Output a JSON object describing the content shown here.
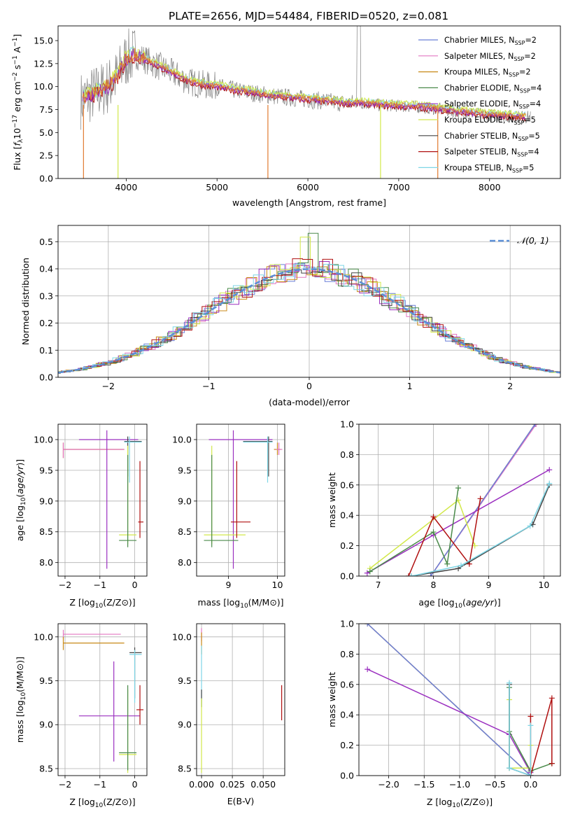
{
  "figure_title": "PLATE=2656, MJD=54484, FIBERID=0520, z=0.081",
  "colors": {
    "Chabrier MILES": "#6a7fd8",
    "Salpeter MILES": "#e377c2",
    "Kroupa MILES": "#c88a18",
    "Chabrier ELODIE": "#4a8a4a",
    "Salpeter ELODIE": "#9b30c0",
    "Kroupa ELODIE": "#d2e84a",
    "Chabrier STELIB": "#454545",
    "Salpeter STELIB": "#b01010",
    "Kroupa STELIB": "#7ed6e6",
    "orange_overlay": "#e07a30",
    "data_gray": "#808080",
    "normal_dash": "#5b8fd6"
  },
  "chart_data": [
    {
      "id": "spectrum",
      "type": "line",
      "title": "PLATE=2656, MJD=54484, FIBERID=0520, z=0.081",
      "xlabel": "wavelength [Angstrom, rest frame]",
      "ylabel_main": "Flux [",
      "xlim": [
        3250,
        8780
      ],
      "ylim": [
        0,
        16.6
      ],
      "xticks": [
        4000,
        5000,
        6000,
        7000,
        8000
      ],
      "yticks": [
        "0.0",
        "2.5",
        "5.0",
        "7.5",
        "10.0",
        "12.5",
        "15.0"
      ],
      "ytick_values": [
        0,
        2.5,
        5,
        7.5,
        10,
        12.5,
        15
      ],
      "grid": false,
      "legend_position": "top-right",
      "continuum": {
        "x": [
          3500,
          3600,
          3700,
          3800,
          3900,
          4000,
          4100,
          4200,
          4300,
          4400,
          4500,
          4600,
          4700,
          4800,
          4900,
          5000,
          5200,
          5400,
          5600,
          5800,
          6000,
          6200,
          6400,
          6600,
          6800,
          7000,
          7200,
          7400,
          7600,
          7800,
          8000,
          8200,
          8400
        ],
        "y": [
          8.5,
          9.0,
          9.5,
          10.0,
          11.0,
          13.0,
          13.5,
          13.0,
          12.5,
          12.0,
          11.5,
          11.0,
          10.5,
          10.3,
          10.1,
          10.0,
          9.6,
          9.3,
          9.0,
          8.8,
          8.6,
          8.4,
          8.2,
          8.2,
          8.0,
          7.9,
          7.8,
          7.6,
          7.3,
          7.1,
          6.9,
          6.8,
          6.7
        ]
      },
      "legend": [
        {
          "label": "Chabrier MILES",
          "n": "2"
        },
        {
          "label": "Salpeter MILES",
          "n": "2"
        },
        {
          "label": "Kroupa MILES",
          "n": "2"
        },
        {
          "label": "Chabrier ELODIE",
          "n": "4"
        },
        {
          "label": "Salpeter ELODIE",
          "n": "4"
        },
        {
          "label": "Kroupa ELODIE",
          "n": "5"
        },
        {
          "label": "Chabrier STELIB",
          "n": "5"
        },
        {
          "label": "Salpeter STELIB",
          "n": "4"
        },
        {
          "label": "Kroupa STELIB",
          "n": "5"
        }
      ]
    },
    {
      "id": "residuals",
      "type": "line",
      "xlabel": "(data-model)/error",
      "ylabel": "Normed distribution",
      "xlim": [
        -2.5,
        2.5
      ],
      "ylim": [
        0,
        0.56
      ],
      "xticks": [
        "−2",
        "−1",
        "0",
        "1",
        "2"
      ],
      "xtick_values": [
        -2,
        -1,
        0,
        1,
        2
      ],
      "yticks": [
        "0.0",
        "0.1",
        "0.2",
        "0.3",
        "0.4",
        "0.5"
      ],
      "ytick_values": [
        0,
        0.1,
        0.2,
        0.3,
        0.4,
        0.5
      ],
      "grid": true,
      "legend_position": "top-right",
      "legend_label": "𝒩(0, 1)"
    },
    {
      "id": "age_vs_Z",
      "type": "scatter",
      "xlabel": "Z [log",
      "ylabel": "age  [log",
      "xlim": [
        -2.2,
        0.35
      ],
      "ylim": [
        7.78,
        10.25
      ],
      "xticks": [
        "−2",
        "−1",
        "0"
      ],
      "xtick_values": [
        -2,
        -1,
        0
      ],
      "yticks": [
        "8.0",
        "8.5",
        "9.0",
        "9.5",
        "10.0"
      ],
      "ytick_values": [
        8.0,
        8.5,
        9.0,
        9.5,
        10.0
      ],
      "grid": true,
      "points": [
        {
          "model": "Kroupa MILES",
          "x": -2.05,
          "y": 9.84,
          "xlo": -2.05,
          "xhi": -0.3,
          "ylo": 9.7,
          "yhi": 9.95
        },
        {
          "model": "Salpeter MILES",
          "x": -2.05,
          "y": 9.84,
          "xlo": -2.05,
          "xhi": -0.3,
          "ylo": 9.7,
          "yhi": 9.95
        },
        {
          "model": "Salpeter ELODIE",
          "x": -0.8,
          "y": 10.0,
          "xlo": -1.6,
          "xhi": 0.1,
          "ylo": 7.9,
          "yhi": 10.15
        },
        {
          "model": "Chabrier STELIB",
          "x": -0.2,
          "y": 9.97,
          "xlo": -0.3,
          "xhi": 0.2,
          "ylo": 9.4,
          "yhi": 10.05
        },
        {
          "model": "Kroupa STELIB",
          "x": -0.15,
          "y": 9.96,
          "xlo": -0.3,
          "xhi": 0.2,
          "ylo": 9.3,
          "yhi": 10.05
        },
        {
          "model": "Kroupa ELODIE",
          "x": -0.2,
          "y": 8.45,
          "xlo": -0.45,
          "xhi": 0.05,
          "ylo": 8.3,
          "yhi": 9.9
        },
        {
          "model": "Chabrier ELODIE",
          "x": -0.2,
          "y": 8.36,
          "xlo": -0.45,
          "xhi": 0.05,
          "ylo": 8.25,
          "yhi": 9.75
        },
        {
          "model": "Salpeter STELIB",
          "x": 0.15,
          "y": 8.66,
          "xlo": 0.1,
          "xhi": 0.25,
          "ylo": 8.4,
          "yhi": 9.65
        }
      ]
    },
    {
      "id": "age_vs_mass",
      "type": "scatter",
      "xlabel": "mass [log",
      "xlim": [
        8.35,
        10.15
      ],
      "ylim": [
        7.78,
        10.25
      ],
      "xticks": [
        "9",
        "10"
      ],
      "xtick_values": [
        9,
        10
      ],
      "yticks": [
        "8.0",
        "8.5",
        "9.0",
        "9.5",
        "10.0"
      ],
      "ytick_values": [
        8.0,
        8.5,
        9.0,
        9.5,
        10.0
      ],
      "grid": true,
      "points": [
        {
          "model": "Salpeter ELODIE",
          "x": 9.1,
          "y": 10.0,
          "xlo": 8.6,
          "xhi": 9.9,
          "ylo": 7.9,
          "yhi": 10.15
        },
        {
          "model": "Kroupa MILES",
          "x": 10.0,
          "y": 9.84,
          "xlo": 9.93,
          "xhi": 10.07,
          "ylo": 9.75,
          "yhi": 9.95
        },
        {
          "model": "Salpeter MILES",
          "x": 10.03,
          "y": 9.84,
          "xlo": 9.97,
          "xhi": 10.1,
          "ylo": 9.75,
          "yhi": 9.95
        },
        {
          "model": "Chabrier STELIB",
          "x": 9.82,
          "y": 9.97,
          "xlo": 9.3,
          "xhi": 9.9,
          "ylo": 9.4,
          "yhi": 10.05
        },
        {
          "model": "Kroupa STELIB",
          "x": 9.8,
          "y": 9.96,
          "xlo": 9.3,
          "xhi": 9.9,
          "ylo": 9.3,
          "yhi": 10.05
        },
        {
          "model": "Kroupa ELODIE",
          "x": 8.66,
          "y": 8.45,
          "xlo": 8.5,
          "xhi": 9.35,
          "ylo": 8.3,
          "yhi": 9.9
        },
        {
          "model": "Chabrier ELODIE",
          "x": 8.66,
          "y": 8.36,
          "xlo": 8.5,
          "xhi": 9.2,
          "ylo": 8.25,
          "yhi": 9.75
        },
        {
          "model": "Salpeter STELIB",
          "x": 9.17,
          "y": 8.66,
          "xlo": 9.05,
          "xhi": 9.45,
          "ylo": 8.4,
          "yhi": 9.65
        }
      ]
    },
    {
      "id": "weight_vs_age",
      "type": "line",
      "xlabel": "age  [log",
      "ylabel": "mass weight",
      "xlim": [
        6.65,
        10.3
      ],
      "ylim": [
        0,
        1.0
      ],
      "xticks": [
        "7",
        "8",
        "9",
        "10"
      ],
      "xtick_values": [
        7,
        8,
        9,
        10
      ],
      "yticks": [
        "0.0",
        "0.2",
        "0.4",
        "0.6",
        "0.8",
        "1.0"
      ],
      "ytick_values": [
        0,
        0.2,
        0.4,
        0.6,
        0.8,
        1.0
      ],
      "grid": true,
      "series": [
        {
          "model": "Kroupa MILES",
          "x": [
            7.95,
            9.84
          ],
          "y": [
            0.0,
            1.0
          ]
        },
        {
          "model": "Salpeter MILES",
          "x": [
            7.95,
            9.86
          ],
          "y": [
            0.0,
            1.0
          ]
        },
        {
          "model": "Chabrier MILES",
          "x": [
            7.95,
            9.84
          ],
          "y": [
            0.0,
            1.0
          ]
        },
        {
          "model": "Salpeter ELODIE",
          "x": [
            6.8,
            8.0,
            10.1
          ],
          "y": [
            0.02,
            0.27,
            0.7
          ]
        },
        {
          "model": "Kroupa ELODIE",
          "x": [
            6.85,
            8.45,
            8.75
          ],
          "y": [
            0.05,
            0.5,
            0.2
          ]
        },
        {
          "model": "Chabrier ELODIE",
          "x": [
            6.85,
            8.0,
            8.25,
            8.45
          ],
          "y": [
            0.03,
            0.29,
            0.08,
            0.58
          ]
        },
        {
          "model": "Salpeter STELIB",
          "x": [
            7.55,
            8.0,
            8.65,
            8.85
          ],
          "y": [
            0.0,
            0.39,
            0.08,
            0.51
          ]
        },
        {
          "model": "Chabrier STELIB",
          "x": [
            7.6,
            8.45,
            9.8,
            10.1
          ],
          "y": [
            0.0,
            0.05,
            0.34,
            0.6
          ]
        },
        {
          "model": "Kroupa STELIB",
          "x": [
            7.6,
            8.5,
            9.75,
            10.1
          ],
          "y": [
            0.0,
            0.07,
            0.33,
            0.61
          ]
        }
      ]
    },
    {
      "id": "mass_vs_Z",
      "type": "scatter",
      "xlabel": "Z [log",
      "ylabel": "mass [log",
      "xlim": [
        -2.2,
        0.35
      ],
      "ylim": [
        8.42,
        10.15
      ],
      "xticks": [
        "−2",
        "−1",
        "0"
      ],
      "xtick_values": [
        -2,
        -1,
        0
      ],
      "yticks": [
        "8.5",
        "9.0",
        "9.5",
        "10.0"
      ],
      "ytick_values": [
        8.5,
        9.0,
        9.5,
        10.0
      ],
      "grid": true,
      "points": [
        {
          "model": "Salpeter MILES",
          "x": -2.05,
          "y": 10.03,
          "xlo": -2.05,
          "xhi": -0.4,
          "ylo": 9.98,
          "yhi": 10.08
        },
        {
          "model": "Kroupa MILES",
          "x": -2.05,
          "y": 9.93,
          "xlo": -2.05,
          "xhi": -0.3,
          "ylo": 9.85,
          "yhi": 10.0
        },
        {
          "model": "Salpeter ELODIE",
          "x": -0.6,
          "y": 9.1,
          "xlo": -1.6,
          "xhi": 0.15,
          "ylo": 8.58,
          "yhi": 9.72
        },
        {
          "model": "Chabrier STELIB",
          "x": 0.0,
          "y": 9.82,
          "xlo": -0.15,
          "xhi": 0.2,
          "ylo": 9.3,
          "yhi": 9.88
        },
        {
          "model": "Kroupa STELIB",
          "x": 0.0,
          "y": 9.8,
          "xlo": -0.15,
          "xhi": 0.2,
          "ylo": 9.25,
          "yhi": 9.85
        },
        {
          "model": "Kroupa ELODIE",
          "x": -0.2,
          "y": 8.66,
          "xlo": -0.45,
          "xhi": 0.05,
          "ylo": 8.45,
          "yhi": 9.4
        },
        {
          "model": "Chabrier ELODIE",
          "x": -0.2,
          "y": 8.68,
          "xlo": -0.45,
          "xhi": 0.05,
          "ylo": 8.48,
          "yhi": 9.45
        },
        {
          "model": "Salpeter STELIB",
          "x": 0.15,
          "y": 9.17,
          "xlo": 0.05,
          "xhi": 0.25,
          "ylo": 9.0,
          "yhi": 9.45
        }
      ]
    },
    {
      "id": "mass_vs_ebv",
      "type": "scatter",
      "xlabel": "E(B-V)",
      "xlim": [
        -0.004,
        0.0675
      ],
      "ylim": [
        8.42,
        10.15
      ],
      "xticks": [
        "0.000",
        "0.025",
        "0.050"
      ],
      "xtick_values": [
        0.0,
        0.025,
        0.05
      ],
      "yticks": [
        "8.5",
        "9.0",
        "9.5",
        "10.0"
      ],
      "ytick_values": [
        8.5,
        9.0,
        9.5,
        10.0
      ],
      "grid": true,
      "points": [
        {
          "model": "Salpeter MILES",
          "x": 0.0,
          "y": 10.03,
          "ylo": 9.95,
          "yhi": 10.1
        },
        {
          "model": "Kroupa MILES",
          "x": 0.0,
          "y": 9.93,
          "ylo": 9.8,
          "yhi": 10.05
        },
        {
          "model": "Kroupa STELIB",
          "x": 0.0,
          "y": 9.8,
          "ylo": 9.2,
          "yhi": 9.9
        },
        {
          "model": "Chabrier STELIB",
          "x": 0.0,
          "y": 9.3,
          "ylo": 9.2,
          "yhi": 9.4
        },
        {
          "model": "Kroupa ELODIE",
          "x": 0.0,
          "y": 8.7,
          "ylo": 8.45,
          "yhi": 9.3
        },
        {
          "model": "Salpeter STELIB",
          "x": 0.065,
          "y": 9.17,
          "ylo": 9.05,
          "yhi": 9.45
        }
      ]
    },
    {
      "id": "weight_vs_Z",
      "type": "line",
      "xlabel": "Z [log",
      "ylabel": "mass weight",
      "xlim": [
        -2.42,
        0.42
      ],
      "ylim": [
        0,
        1.0
      ],
      "xticks": [
        "−2.0",
        "−1.5",
        "−1.0",
        "−0.5",
        "0.0"
      ],
      "xtick_values": [
        -2.0,
        -1.5,
        -1.0,
        -0.5,
        0.0
      ],
      "yticks": [
        "0.0",
        "0.2",
        "0.4",
        "0.6",
        "0.8",
        "1.0"
      ],
      "ytick_values": [
        0,
        0.2,
        0.4,
        0.6,
        0.8,
        1.0
      ],
      "grid": true,
      "series": [
        {
          "model": "Kroupa MILES",
          "x": [
            -2.3,
            0.0
          ],
          "y": [
            1.0,
            0.0
          ]
        },
        {
          "model": "Chabrier MILES",
          "x": [
            -2.3,
            0.0
          ],
          "y": [
            1.0,
            0.0
          ]
        },
        {
          "model": "Salpeter ELODIE",
          "x": [
            -2.3,
            -0.3,
            0.0
          ],
          "y": [
            0.7,
            0.27,
            0.02
          ]
        },
        {
          "model": "Kroupa ELODIE",
          "x": [
            -0.3,
            -0.3,
            0.0,
            0.0
          ],
          "y": [
            0.5,
            0.05,
            0.05,
            0.2
          ]
        },
        {
          "model": "Chabrier ELODIE",
          "x": [
            -0.3,
            -0.3,
            0.0,
            0.3
          ],
          "y": [
            0.58,
            0.29,
            0.03,
            0.08
          ]
        },
        {
          "model": "Salpeter STELIB",
          "x": [
            0.0,
            0.0,
            0.3,
            0.3
          ],
          "y": [
            0.39,
            0.0,
            0.51,
            0.08
          ]
        },
        {
          "model": "Chabrier STELIB",
          "x": [
            -0.3,
            -0.3,
            0.0
          ],
          "y": [
            0.6,
            0.05,
            0.0
          ]
        },
        {
          "model": "Kroupa STELIB",
          "x": [
            -0.3,
            -0.3,
            0.0,
            0.0
          ],
          "y": [
            0.61,
            0.05,
            0.0,
            0.33
          ]
        }
      ]
    }
  ]
}
